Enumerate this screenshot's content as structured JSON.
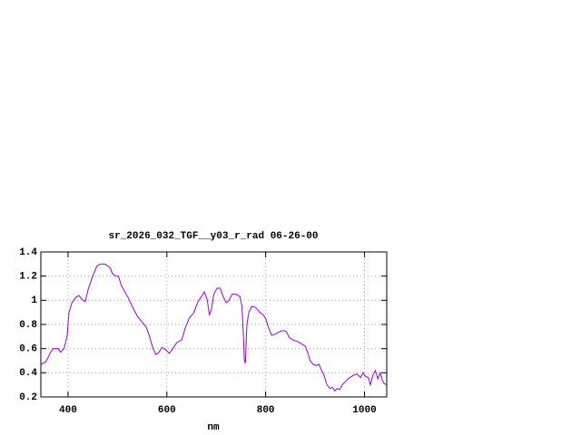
{
  "chart_data": {
    "type": "line",
    "title": "sr_2026_032_TGF__y03_r_rad 06-26-00",
    "x_label": "nm",
    "color": "#9400d3",
    "grid": true,
    "xlim": [
      345,
      1045
    ],
    "xticks": [
      400,
      600,
      800,
      1000
    ],
    "ylim": [
      0.2,
      1.4
    ],
    "yticks": [
      0.2,
      0.4,
      0.6,
      0.8,
      1,
      1.2,
      1.4
    ],
    "x": [
      345,
      355,
      365,
      370,
      380,
      385,
      392,
      398,
      402,
      408,
      415,
      422,
      430,
      435,
      440,
      450,
      458,
      465,
      475,
      485,
      490,
      497,
      502,
      508,
      515,
      522,
      530,
      540,
      550,
      558,
      565,
      572,
      578,
      584,
      590,
      598,
      605,
      612,
      620,
      630,
      638,
      645,
      655,
      662,
      670,
      676,
      682,
      686,
      690,
      695,
      702,
      708,
      714,
      720,
      726,
      732,
      740,
      748,
      752,
      755,
      757,
      759,
      762,
      766,
      772,
      780,
      788,
      795,
      800,
      806,
      812,
      820,
      828,
      836,
      842,
      848,
      856,
      864,
      872,
      880,
      885,
      890,
      896,
      902,
      908,
      913,
      918,
      924,
      930,
      935,
      940,
      945,
      950,
      955,
      962,
      970,
      978,
      985,
      992,
      997,
      1002,
      1008,
      1012,
      1017,
      1022,
      1027,
      1032,
      1036,
      1040,
      1045
    ],
    "values": [
      0.47,
      0.49,
      0.57,
      0.6,
      0.6,
      0.57,
      0.6,
      0.7,
      0.9,
      0.98,
      1.02,
      1.04,
      1.0,
      0.99,
      1.08,
      1.2,
      1.28,
      1.3,
      1.3,
      1.27,
      1.22,
      1.2,
      1.2,
      1.12,
      1.07,
      1.02,
      0.95,
      0.87,
      0.82,
      0.78,
      0.7,
      0.6,
      0.55,
      0.57,
      0.61,
      0.59,
      0.56,
      0.6,
      0.65,
      0.67,
      0.78,
      0.85,
      0.9,
      0.98,
      1.03,
      1.07,
      1.0,
      0.88,
      0.92,
      1.05,
      1.1,
      1.1,
      1.03,
      0.98,
      1.0,
      1.05,
      1.05,
      1.03,
      0.95,
      0.7,
      0.5,
      0.48,
      0.8,
      0.9,
      0.95,
      0.94,
      0.9,
      0.88,
      0.85,
      0.77,
      0.71,
      0.72,
      0.74,
      0.75,
      0.74,
      0.69,
      0.67,
      0.66,
      0.64,
      0.62,
      0.57,
      0.5,
      0.47,
      0.46,
      0.47,
      0.42,
      0.38,
      0.3,
      0.27,
      0.28,
      0.25,
      0.27,
      0.26,
      0.3,
      0.33,
      0.36,
      0.38,
      0.39,
      0.36,
      0.4,
      0.37,
      0.36,
      0.3,
      0.38,
      0.42,
      0.35,
      0.4,
      0.34,
      0.31,
      0.3
    ]
  }
}
